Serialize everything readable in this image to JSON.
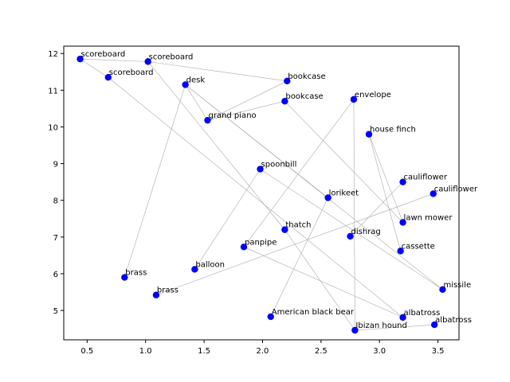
{
  "chart_data": {
    "type": "scatter",
    "title": "",
    "xlabel": "",
    "ylabel": "",
    "xlim": [
      0.3,
      3.68
    ],
    "ylim": [
      4.2,
      12.2
    ],
    "xticks": [
      0.5,
      1.0,
      1.5,
      2.0,
      2.5,
      3.0,
      3.5
    ],
    "yticks": [
      5,
      6,
      7,
      8,
      9,
      10,
      11,
      12
    ],
    "grid": false,
    "marker_color": "#0000ff",
    "edge_color": "#aaaaaa",
    "points": [
      {
        "label": "scoreboard",
        "x": 0.44,
        "y": 11.85
      },
      {
        "label": "scoreboard",
        "x": 1.02,
        "y": 11.78
      },
      {
        "label": "scoreboard",
        "x": 0.68,
        "y": 11.35
      },
      {
        "label": "desk",
        "x": 1.34,
        "y": 11.15
      },
      {
        "label": "bookcase",
        "x": 2.21,
        "y": 11.25
      },
      {
        "label": "bookcase",
        "x": 2.19,
        "y": 10.7
      },
      {
        "label": "envelope",
        "x": 2.78,
        "y": 10.75
      },
      {
        "label": "grand piano",
        "x": 1.53,
        "y": 10.18
      },
      {
        "label": "house finch",
        "x": 2.91,
        "y": 9.8
      },
      {
        "label": "spoonbill",
        "x": 1.98,
        "y": 8.85
      },
      {
        "label": "lorikeet",
        "x": 2.56,
        "y": 8.07
      },
      {
        "label": "cauliflower",
        "x": 3.2,
        "y": 8.5
      },
      {
        "label": "cauliflower",
        "x": 3.46,
        "y": 8.18
      },
      {
        "label": "lawn mower",
        "x": 3.2,
        "y": 7.4
      },
      {
        "label": "thatch",
        "x": 2.19,
        "y": 7.2
      },
      {
        "label": "dishrag",
        "x": 2.75,
        "y": 7.02
      },
      {
        "label": "panpipe",
        "x": 1.84,
        "y": 6.73
      },
      {
        "label": "cassette",
        "x": 3.18,
        "y": 6.62
      },
      {
        "label": "balloon",
        "x": 1.42,
        "y": 6.12
      },
      {
        "label": "brass",
        "x": 0.82,
        "y": 5.9
      },
      {
        "label": "brass",
        "x": 1.09,
        "y": 5.42
      },
      {
        "label": "missile",
        "x": 3.54,
        "y": 5.57
      },
      {
        "label": "American black bear",
        "x": 2.07,
        "y": 4.83
      },
      {
        "label": "albatross",
        "x": 3.2,
        "y": 4.81
      },
      {
        "label": "albatross",
        "x": 3.47,
        "y": 4.61
      },
      {
        "label": "Ibizan hound",
        "x": 2.79,
        "y": 4.46
      }
    ],
    "edges": [
      [
        0,
        1
      ],
      [
        0,
        2
      ],
      [
        1,
        4
      ],
      [
        1,
        14
      ],
      [
        2,
        23
      ],
      [
        3,
        19
      ],
      [
        3,
        7
      ],
      [
        3,
        21
      ],
      [
        7,
        5
      ],
      [
        6,
        16
      ],
      [
        6,
        25
      ],
      [
        8,
        13
      ],
      [
        8,
        17
      ],
      [
        11,
        15
      ],
      [
        12,
        20
      ],
      [
        10,
        22
      ],
      [
        10,
        3
      ],
      [
        9,
        18
      ],
      [
        9,
        21
      ],
      [
        14,
        25
      ],
      [
        5,
        13
      ],
      [
        24,
        25
      ],
      [
        16,
        23
      ],
      [
        4,
        7
      ]
    ]
  }
}
